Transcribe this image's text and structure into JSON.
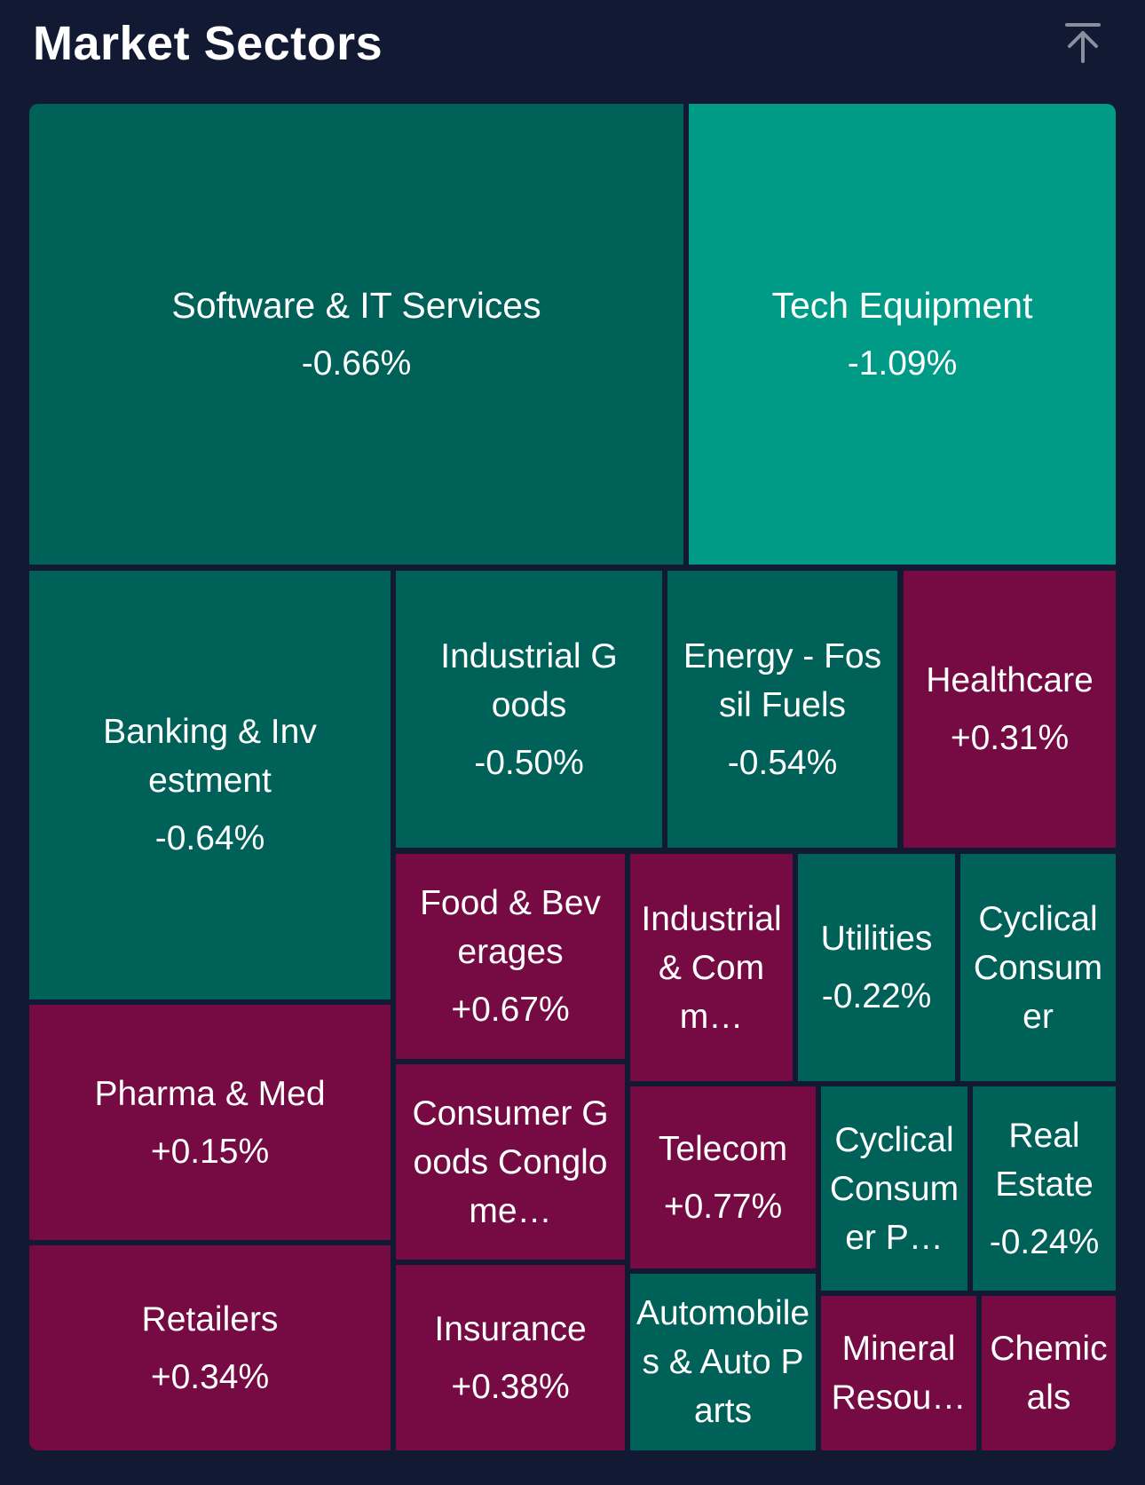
{
  "header": {
    "title": "Market Sectors",
    "scroll_top_icon": "arrow-up-to-top-icon"
  },
  "colors": {
    "background": "#121a33",
    "teal_dark": "#006159",
    "teal_light": "#009b86",
    "magenta": "#760a43",
    "icon": "#8a8f9e"
  },
  "sectors": [
    {
      "name": "Software & IT Services",
      "change": "-0.66%"
    },
    {
      "name": "Tech Equipment",
      "change": "-1.09%"
    },
    {
      "name": "Banking & Investment",
      "change": "-0.64%"
    },
    {
      "name": "Industrial Goods",
      "change": "-0.50%"
    },
    {
      "name": "Energy - Fossil Fuels",
      "change": "-0.54%"
    },
    {
      "name": "Healthcare",
      "change": "+0.31%"
    },
    {
      "name": "Food & Beverages",
      "change": "+0.67%"
    },
    {
      "name": "Industrial & Comm…",
      "change": ""
    },
    {
      "name": "Utilities",
      "change": "-0.22%"
    },
    {
      "name": "Cyclical Consumer",
      "change": ""
    },
    {
      "name": "Pharma & Med",
      "change": "+0.15%"
    },
    {
      "name": "Consumer Goods Conglome…",
      "change": ""
    },
    {
      "name": "Telecom",
      "change": "+0.77%"
    },
    {
      "name": "Cyclical Consumer P…",
      "change": ""
    },
    {
      "name": "Real Estate",
      "change": "-0.24%"
    },
    {
      "name": "Retailers",
      "change": "+0.34%"
    },
    {
      "name": "Insurance",
      "change": "+0.38%"
    },
    {
      "name": "Automobiles & Auto Parts",
      "change": ""
    },
    {
      "name": "Mineral Resou…",
      "change": ""
    },
    {
      "name": "Chemicals",
      "change": ""
    }
  ]
}
